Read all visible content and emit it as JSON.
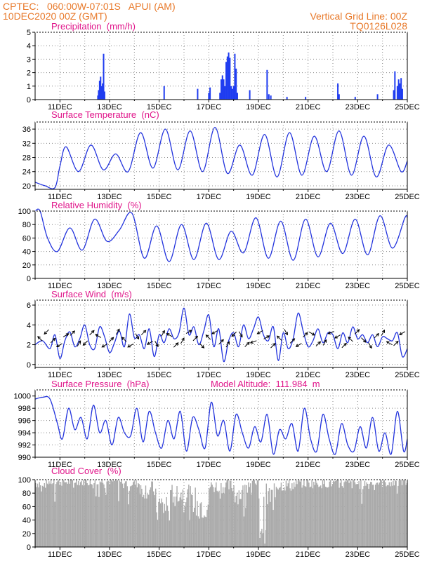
{
  "header": {
    "line1_left": "CPTEC:   060:00W-07:01S   APUI (AM)",
    "line2_left": "10DEC2020 00Z (GMT)",
    "line1_right": "Vertical Grid Line: 00Z",
    "line2_right": "TQ0126L028"
  },
  "colors": {
    "header": "#e8792a",
    "title": "#e0158a",
    "series": "#2233dd",
    "bar": "#1f3cf0",
    "cloud": "#aaaaaa",
    "arrow": "#000000"
  },
  "x_ticks": [
    "11DEC",
    "13DEC",
    "15DEC",
    "17DEC",
    "19DEC",
    "21DEC",
    "23DEC",
    "25DEC"
  ],
  "chart_data": [
    {
      "type": "bar",
      "title": "Precipitation  (mm/h)",
      "ylim": [
        0,
        5
      ],
      "yticks": [
        "0",
        "1",
        "2",
        "3",
        "4",
        "5"
      ],
      "x_range_days": [
        0,
        15
      ],
      "events": [
        {
          "x": 2.53,
          "v": 0.3
        },
        {
          "x": 2.56,
          "v": 0.7
        },
        {
          "x": 2.6,
          "v": 1.4
        },
        {
          "x": 2.64,
          "v": 1.7
        },
        {
          "x": 2.68,
          "v": 1.0
        },
        {
          "x": 2.72,
          "v": 1.2
        },
        {
          "x": 2.76,
          "v": 3.4
        },
        {
          "x": 2.8,
          "v": 0.6
        },
        {
          "x": 5.2,
          "v": 1.0
        },
        {
          "x": 6.55,
          "v": 0.8
        },
        {
          "x": 7.0,
          "v": 0.5
        },
        {
          "x": 7.05,
          "v": 0.9
        },
        {
          "x": 7.45,
          "v": 0.5
        },
        {
          "x": 7.5,
          "v": 1.5
        },
        {
          "x": 7.55,
          "v": 1.8
        },
        {
          "x": 7.6,
          "v": 1.5
        },
        {
          "x": 7.65,
          "v": 1.0
        },
        {
          "x": 7.7,
          "v": 2.8
        },
        {
          "x": 7.75,
          "v": 3.2
        },
        {
          "x": 7.8,
          "v": 3.5
        },
        {
          "x": 7.85,
          "v": 3.1
        },
        {
          "x": 7.9,
          "v": 1.0
        },
        {
          "x": 7.95,
          "v": 0.8
        },
        {
          "x": 8.0,
          "v": 1.0
        },
        {
          "x": 8.05,
          "v": 3.4
        },
        {
          "x": 8.1,
          "v": 2.3
        },
        {
          "x": 8.15,
          "v": 0.5
        },
        {
          "x": 8.65,
          "v": 0.7
        },
        {
          "x": 9.35,
          "v": 2.2
        },
        {
          "x": 9.42,
          "v": 0.4
        },
        {
          "x": 9.5,
          "v": 0.3
        },
        {
          "x": 10.15,
          "v": 0.2
        },
        {
          "x": 10.9,
          "v": 0.2
        },
        {
          "x": 12.2,
          "v": 1.2
        },
        {
          "x": 12.25,
          "v": 0.4
        },
        {
          "x": 12.9,
          "v": 0.2
        },
        {
          "x": 13.8,
          "v": 0.4
        },
        {
          "x": 14.45,
          "v": 0.7
        },
        {
          "x": 14.5,
          "v": 2.1
        },
        {
          "x": 14.6,
          "v": 1.0
        },
        {
          "x": 14.65,
          "v": 1.5
        },
        {
          "x": 14.7,
          "v": 1.2
        },
        {
          "x": 14.75,
          "v": 1.6
        },
        {
          "x": 14.8,
          "v": 0.8
        }
      ]
    },
    {
      "type": "line",
      "title": "Surface Temperature  (nC)",
      "ylim": [
        19,
        38
      ],
      "yticks": [
        "20",
        "24",
        "28",
        "32",
        "36"
      ],
      "ytick_values": [
        20,
        24,
        28,
        32,
        36
      ],
      "min": 24.0,
      "amp": 10.5,
      "start": 21.0,
      "x": [
        0,
        0.4,
        0.8,
        1.0,
        1.25,
        1.75,
        2.25,
        2.75,
        3.25,
        3.75,
        4.25,
        4.75,
        5.25,
        5.75,
        6.25,
        6.75,
        7.25,
        7.75,
        8.25,
        8.75,
        9.25,
        9.75,
        10.25,
        10.75,
        11.25,
        11.75,
        12.25,
        12.75,
        13.25,
        13.75,
        14.25,
        14.75,
        15
      ],
      "values": [
        21.0,
        20.0,
        19.5,
        25.5,
        31.0,
        24.0,
        31.5,
        24.5,
        29.0,
        24.0,
        35.0,
        25.0,
        36.0,
        24.5,
        35.5,
        24.0,
        36.5,
        23.5,
        31.5,
        23.0,
        34.5,
        22.5,
        35.0,
        23.0,
        34.0,
        24.0,
        35.5,
        23.0,
        34.0,
        22.5,
        31.5,
        24.0,
        27.0
      ]
    },
    {
      "type": "line",
      "title": "Relative Humidity  (%)",
      "ylim": [
        0,
        100
      ],
      "yticks": [
        "0",
        "20",
        "40",
        "60",
        "80",
        "100"
      ],
      "ytick_values": [
        0,
        20,
        40,
        60,
        80,
        100
      ],
      "x": [
        0,
        0.2,
        0.5,
        0.9,
        1.4,
        1.9,
        2.4,
        2.9,
        3.4,
        3.9,
        4.4,
        4.9,
        5.4,
        5.9,
        6.4,
        6.9,
        7.4,
        7.9,
        8.4,
        8.9,
        9.4,
        9.9,
        10.4,
        10.9,
        11.4,
        11.9,
        12.4,
        12.9,
        13.4,
        13.9,
        14.4,
        14.9,
        15
      ],
      "values": [
        100,
        100,
        60,
        40,
        75,
        42,
        88,
        55,
        72,
        97,
        30,
        78,
        25,
        80,
        28,
        82,
        28,
        70,
        38,
        90,
        30,
        85,
        27,
        88,
        32,
        82,
        37,
        88,
        35,
        93,
        45,
        90,
        90
      ]
    },
    {
      "type": "line",
      "title": "Surface Wind  (m/s)",
      "ylim": [
        -0.3,
        6.5
      ],
      "yticks": [
        "0",
        "2",
        "4",
        "6"
      ],
      "ytick_values": [
        0,
        2,
        4,
        6
      ],
      "x": [
        0,
        0.3,
        0.6,
        0.8,
        1.0,
        1.2,
        1.4,
        1.6,
        1.8,
        2.0,
        2.2,
        2.4,
        2.6,
        2.8,
        3.0,
        3.2,
        3.4,
        3.6,
        3.8,
        4.0,
        4.2,
        4.4,
        4.6,
        4.8,
        5.0,
        5.2,
        5.4,
        5.6,
        5.8,
        6.0,
        6.2,
        6.4,
        6.6,
        6.8,
        7.0,
        7.2,
        7.4,
        7.6,
        7.8,
        8.0,
        8.2,
        8.4,
        8.6,
        8.8,
        9.0,
        9.2,
        9.4,
        9.6,
        9.8,
        10.0,
        10.2,
        10.4,
        10.6,
        10.8,
        11.0,
        11.2,
        11.4,
        11.6,
        11.8,
        12.0,
        12.2,
        12.4,
        12.6,
        12.8,
        13.0,
        13.2,
        13.4,
        13.6,
        13.8,
        14.0,
        14.2,
        14.4,
        14.6,
        14.8,
        15
      ],
      "values": [
        2.0,
        2.4,
        1.6,
        3.0,
        0.6,
        2.4,
        3.3,
        1.8,
        2.6,
        4.0,
        2.0,
        1.6,
        3.8,
        2.8,
        1.2,
        2.2,
        3.4,
        1.8,
        5.1,
        2.7,
        3.0,
        1.6,
        3.6,
        0.8,
        3.0,
        2.2,
        3.6,
        2.6,
        3.2,
        5.7,
        3.0,
        3.8,
        2.0,
        3.4,
        5.0,
        1.8,
        3.6,
        0.3,
        2.4,
        3.2,
        1.8,
        4.0,
        2.6,
        3.6,
        4.8,
        3.0,
        2.4,
        3.8,
        0.4,
        3.2,
        1.6,
        2.6,
        5.2,
        3.4,
        1.8,
        2.4,
        3.6,
        2.2,
        3.2,
        3.0,
        1.6,
        3.2,
        2.2,
        3.8,
        2.6,
        3.0,
        2.2,
        3.0,
        1.8,
        2.8,
        2.6,
        2.4,
        3.2,
        0.8,
        1.6
      ],
      "vector_angles_deg": [
        135,
        225,
        45,
        210,
        30,
        45,
        60,
        225,
        45,
        150,
        210,
        45,
        60,
        135,
        210,
        300,
        45,
        210,
        300,
        60,
        150,
        45,
        60,
        30,
        45,
        315,
        135,
        210,
        45,
        60,
        225,
        300,
        45,
        200,
        210,
        30,
        45,
        135,
        300,
        45,
        210,
        45,
        330,
        45,
        60,
        200,
        210,
        45,
        135,
        45,
        315,
        300,
        45,
        60,
        150,
        45,
        210
      ]
    },
    {
      "type": "line",
      "title": "Surface Pressure  (hPa)",
      "annotation": "Model Altitude:  111.984  m",
      "ylim": [
        990,
        1001
      ],
      "yticks": [
        "990",
        "992",
        "994",
        "996",
        "998",
        "1000"
      ],
      "ytick_values": [
        990,
        992,
        994,
        996,
        998,
        1000
      ],
      "x": [
        0,
        0.3,
        0.6,
        0.9,
        1.1,
        1.35,
        1.6,
        1.85,
        2.1,
        2.35,
        2.6,
        2.85,
        3.1,
        3.35,
        3.6,
        3.85,
        4.1,
        4.35,
        4.6,
        4.85,
        5.1,
        5.35,
        5.6,
        5.85,
        6.1,
        6.35,
        6.6,
        6.85,
        7.1,
        7.35,
        7.6,
        7.85,
        8.1,
        8.35,
        8.6,
        8.85,
        9.1,
        9.35,
        9.6,
        9.85,
        10.1,
        10.35,
        10.6,
        10.85,
        11.1,
        11.35,
        11.6,
        11.85,
        12.1,
        12.35,
        12.6,
        12.85,
        13.1,
        13.35,
        13.6,
        13.85,
        14.1,
        14.35,
        14.6,
        14.85,
        15
      ],
      "values": [
        999.5,
        999.8,
        999.5,
        995.5,
        993.0,
        998.0,
        994.5,
        996.5,
        993.0,
        998.5,
        994.0,
        996.0,
        992.0,
        996.5,
        994.0,
        993.5,
        998.0,
        992.5,
        997.5,
        994.0,
        991.5,
        996.0,
        993.0,
        997.5,
        991.0,
        996.5,
        994.5,
        991.5,
        999.0,
        993.5,
        996.0,
        991.0,
        997.0,
        994.0,
        991.5,
        995.0,
        992.5,
        997.0,
        990.5,
        994.5,
        993.0,
        995.5,
        991.0,
        998.0,
        993.0,
        991.0,
        997.0,
        993.0,
        990.5,
        995.5,
        992.0,
        991.0,
        995.0,
        991.5,
        996.5,
        991.0,
        994.0,
        990.5,
        997.5,
        991.0,
        993.0
      ]
    },
    {
      "type": "bar",
      "title": "Cloud Cover  (%)",
      "ylim": [
        0,
        100
      ],
      "yticks": [
        "0",
        "20",
        "40",
        "60",
        "80",
        "100"
      ],
      "ytick_values": [
        0,
        20,
        40,
        60,
        80,
        100
      ],
      "x_range_days": [
        0,
        15
      ],
      "segments": [
        {
          "x0": 0.0,
          "x1": 0.5,
          "base": 95
        },
        {
          "x0": 0.5,
          "x1": 2.0,
          "base": 97
        },
        {
          "x0": 2.0,
          "x1": 3.5,
          "base": 98
        },
        {
          "x0": 3.5,
          "x1": 4.2,
          "base": 95
        },
        {
          "x0": 4.2,
          "x1": 4.8,
          "base": 85
        },
        {
          "x0": 4.8,
          "x1": 5.5,
          "base": 60
        },
        {
          "x0": 5.5,
          "x1": 6.2,
          "base": 80
        },
        {
          "x0": 6.2,
          "x1": 7.0,
          "base": 65
        },
        {
          "x0": 7.0,
          "x1": 8.0,
          "base": 90
        },
        {
          "x0": 8.0,
          "x1": 8.5,
          "base": 80
        },
        {
          "x0": 8.5,
          "x1": 9.0,
          "base": 95
        },
        {
          "x0": 9.0,
          "x1": 9.3,
          "base": 40
        },
        {
          "x0": 9.3,
          "x1": 9.7,
          "base": 75
        },
        {
          "x0": 9.7,
          "x1": 10.5,
          "base": 92
        },
        {
          "x0": 10.5,
          "x1": 12.0,
          "base": 95
        },
        {
          "x0": 12.0,
          "x1": 13.5,
          "base": 94
        },
        {
          "x0": 13.5,
          "x1": 15.0,
          "base": 96
        }
      ]
    }
  ]
}
